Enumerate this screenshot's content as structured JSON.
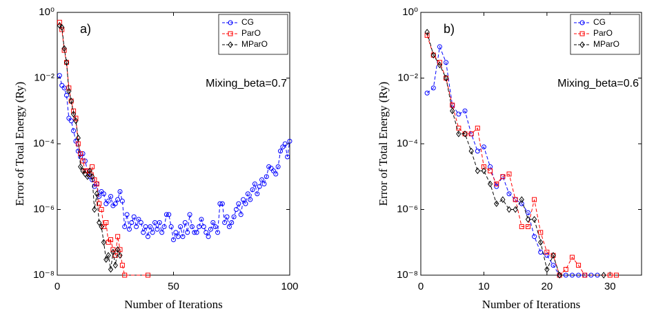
{
  "chart_data": [
    {
      "type": "line",
      "yscale": "log",
      "xlabel": "Number of Iterations",
      "ylabel": "Error of Total Energy (Ry)",
      "annotations": [
        "a)",
        "Mixing_beta=0.7"
      ],
      "legend": "upper right",
      "xlim": [
        0,
        100
      ],
      "xticks": [
        0,
        50,
        100
      ],
      "ylim": [
        1e-08,
        1
      ],
      "yticks": [
        {
          "value": 1,
          "label": "10⁰"
        },
        {
          "value": 0.01,
          "label": "10⁻²"
        },
        {
          "value": 0.0001,
          "label": "10⁻⁴"
        },
        {
          "value": 1e-06,
          "label": "10⁻⁶"
        },
        {
          "value": 1e-08,
          "label": "10⁻⁸"
        }
      ],
      "series": [
        {
          "name": "CG",
          "color": "#0000ff",
          "marker": "circle",
          "x": [
            1,
            2,
            3,
            4,
            5,
            6,
            7,
            8,
            9,
            10,
            11,
            12,
            13,
            14,
            15,
            16,
            17,
            18,
            19,
            20,
            21,
            22,
            23,
            24,
            25,
            26,
            27,
            28,
            29,
            30,
            31,
            32,
            33,
            34,
            35,
            36,
            37,
            38,
            39,
            40,
            41,
            42,
            43,
            44,
            45,
            46,
            47,
            48,
            49,
            50,
            51,
            52,
            53,
            54,
            55,
            56,
            57,
            58,
            59,
            60,
            61,
            62,
            63,
            64,
            65,
            66,
            67,
            68,
            69,
            70,
            71,
            72,
            73,
            74,
            75,
            76,
            77,
            78,
            79,
            80,
            81,
            82,
            83,
            84,
            85,
            86,
            87,
            88,
            89,
            90,
            91,
            92,
            93,
            94,
            95,
            96,
            97,
            98,
            99,
            100
          ],
          "values": [
            0.012,
            0.006,
            0.005,
            0.003,
            0.0006,
            0.0005,
            0.00025,
            0.00012,
            6e-05,
            4e-05,
            5e-05,
            3e-05,
            1.5e-05,
            1e-05,
            8e-06,
            5e-06,
            6e-06,
            2.5e-06,
            3.5e-06,
            3e-06,
            1.5e-06,
            1.8e-06,
            2.5e-06,
            1.3e-06,
            1.5e-06,
            2e-06,
            3.5e-06,
            1.8e-06,
            3e-07,
            7e-07,
            2.5e-07,
            4e-07,
            6e-07,
            3e-07,
            5e-07,
            4e-07,
            2e-07,
            3e-07,
            1.5e-07,
            3e-07,
            2e-07,
            4e-07,
            2.5e-07,
            4e-07,
            2e-07,
            3e-07,
            7e-07,
            7e-07,
            3e-07,
            1.2e-07,
            2e-07,
            1.5e-07,
            3e-07,
            1.5e-07,
            4e-07,
            2e-07,
            7e-07,
            3e-07,
            2e-07,
            2e-07,
            3e-07,
            5e-07,
            3e-07,
            2e-07,
            1.5e-07,
            2.5e-07,
            4e-07,
            3e-07,
            2e-07,
            1.5e-06,
            1.5e-06,
            4e-07,
            6e-07,
            3e-07,
            4e-07,
            6e-07,
            1e-06,
            1.5e-06,
            7e-07,
            2e-06,
            1.5e-06,
            3e-06,
            2e-06,
            4e-06,
            6e-06,
            3e-06,
            5e-06,
            8e-06,
            6e-06,
            1e-05,
            2e-05,
            1.8e-05,
            1.5e-05,
            1.2e-05,
            2e-05,
            6e-05,
            8e-05,
            0.0001,
            4e-05,
            0.00012
          ]
        },
        {
          "name": "ParO",
          "color": "#ff0000",
          "marker": "square",
          "x": [
            1,
            2,
            3,
            4,
            5,
            6,
            7,
            8,
            9,
            10,
            11,
            12,
            13,
            14,
            15,
            16,
            17,
            18,
            19,
            20,
            21,
            22,
            23,
            24,
            25,
            26,
            27,
            28,
            29,
            39
          ],
          "values": [
            0.5,
            0.3,
            0.07,
            0.03,
            0.005,
            0.002,
            0.001,
            0.0006,
            0.0001,
            5e-05,
            3e-05,
            1.5e-05,
            1.5e-05,
            1.2e-05,
            2e-05,
            8e-06,
            6e-06,
            1.5e-06,
            1e-06,
            3e-07,
            4e-07,
            1e-07,
            1.2e-07,
            6e-08,
            4e-08,
            1.5e-07,
            6e-08,
            2e-08,
            1e-08,
            1e-08
          ]
        },
        {
          "name": "MParO",
          "color": "#000000",
          "marker": "diamond",
          "x": [
            1,
            2,
            3,
            4,
            5,
            6,
            7,
            8,
            9,
            10,
            11,
            12,
            13,
            14,
            15,
            16,
            17,
            18,
            19,
            20,
            21,
            22,
            23,
            24,
            25,
            26,
            27
          ],
          "values": [
            0.4,
            0.35,
            0.08,
            0.03,
            0.004,
            0.002,
            0.0008,
            0.0005,
            0.00015,
            2e-05,
            1.5e-05,
            1.2e-05,
            1e-05,
            1.5e-05,
            1e-05,
            1e-06,
            3e-06,
            4e-07,
            3e-07,
            1e-07,
            3e-08,
            4e-08,
            1.5e-08,
            5e-08,
            2e-08,
            6e-08,
            4e-08
          ]
        }
      ]
    },
    {
      "type": "line",
      "yscale": "log",
      "xlabel": "Number of Iterations",
      "ylabel": "Error of Total Energy (Ry)",
      "annotations": [
        "b)",
        "Mixing_beta=0.6"
      ],
      "legend": "upper right",
      "xlim": [
        0,
        35
      ],
      "xticks": [
        0,
        10,
        20,
        30
      ],
      "ylim": [
        1e-08,
        1
      ],
      "yticks": [
        {
          "value": 1,
          "label": "10⁰"
        },
        {
          "value": 0.01,
          "label": "10⁻²"
        },
        {
          "value": 0.0001,
          "label": "10⁻⁴"
        },
        {
          "value": 1e-06,
          "label": "10⁻⁶"
        },
        {
          "value": 1e-08,
          "label": "10⁻⁸"
        }
      ],
      "series": [
        {
          "name": "CG",
          "color": "#0000ff",
          "marker": "circle",
          "x": [
            1,
            2,
            3,
            4,
            5,
            6,
            7,
            8,
            9,
            10,
            11,
            12,
            13,
            14,
            15,
            16,
            17,
            18,
            19,
            20,
            21,
            22,
            23,
            24,
            25,
            26,
            27,
            28
          ],
          "values": [
            0.0035,
            0.005,
            0.09,
            0.03,
            0.0015,
            0.0008,
            0.001,
            0.0002,
            6e-05,
            8e-05,
            2e-05,
            5e-06,
            1e-05,
            3e-06,
            2e-06,
            1.5e-06,
            8e-07,
            1.5e-07,
            5e-08,
            4e-08,
            2e-08,
            1e-08,
            1e-08,
            1e-08,
            1e-08,
            1e-08,
            1e-08,
            1e-08
          ]
        },
        {
          "name": "ParO",
          "color": "#ff0000",
          "marker": "square",
          "x": [
            1,
            2,
            3,
            4,
            5,
            6,
            7,
            8,
            9,
            10,
            11,
            12,
            13,
            14,
            15,
            16,
            17,
            18,
            19,
            20,
            21,
            22,
            23,
            24,
            25,
            26,
            30,
            31
          ],
          "values": [
            0.2,
            0.05,
            0.03,
            0.01,
            0.0015,
            0.0003,
            0.0002,
            0.0002,
            0.0003,
            2e-05,
            1.5e-05,
            6e-06,
            1e-05,
            1.2e-05,
            2e-06,
            3e-07,
            3e-07,
            2e-06,
            2e-07,
            5e-08,
            4e-08,
            1e-08,
            1.5e-08,
            3.5e-08,
            2e-08,
            1e-08,
            1e-08,
            1e-08
          ]
        },
        {
          "name": "MParO",
          "color": "#000000",
          "marker": "diamond",
          "x": [
            1,
            2,
            3,
            4,
            5,
            6,
            7,
            8,
            9,
            10,
            11,
            12,
            13,
            14,
            15,
            16,
            17,
            18,
            19,
            20,
            21,
            22,
            29
          ],
          "values": [
            0.25,
            0.05,
            0.025,
            0.01,
            0.001,
            0.0002,
            0.0002,
            6e-05,
            1.5e-05,
            1.5e-05,
            6e-06,
            1.5e-06,
            2e-06,
            1e-06,
            1e-06,
            2e-06,
            5e-07,
            5e-07,
            1e-07,
            1.5e-08,
            4e-08,
            1e-08,
            1e-08
          ]
        }
      ]
    }
  ]
}
